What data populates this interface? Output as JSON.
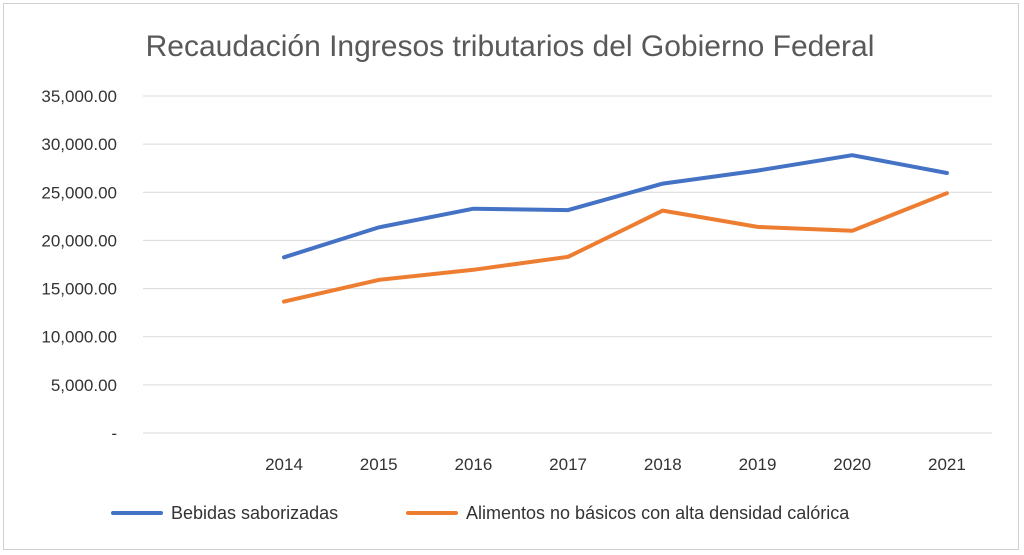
{
  "chart_data": {
    "type": "line",
    "title": "Recaudación Ingresos tributarios del Gobierno Federal",
    "categories": [
      "2014",
      "2015",
      "2016",
      "2017",
      "2018",
      "2019",
      "2020",
      "2021"
    ],
    "ylim": [
      0,
      35000
    ],
    "yticks": [
      {
        "value": 0,
        "label": "-"
      },
      {
        "value": 5000,
        "label": "5,000.00"
      },
      {
        "value": 10000,
        "label": "10,000.00"
      },
      {
        "value": 15000,
        "label": "15,000.00"
      },
      {
        "value": 20000,
        "label": "20,000.00"
      },
      {
        "value": 25000,
        "label": "25,000.00"
      },
      {
        "value": 30000,
        "label": "30,000.00"
      },
      {
        "value": 35000,
        "label": "35,000.00"
      }
    ],
    "grid": true,
    "legend_position": "bottom",
    "series": [
      {
        "name": "Bebidas saborizadas",
        "color": "#4472C4",
        "values": [
          18250,
          21350,
          23300,
          23150,
          25900,
          27250,
          28850,
          27000
        ]
      },
      {
        "name": "Alimentos no básicos con alta densidad calórica",
        "color": "#ED7D31",
        "values": [
          13650,
          15900,
          16950,
          18300,
          23100,
          21400,
          21000,
          24900
        ]
      }
    ]
  }
}
